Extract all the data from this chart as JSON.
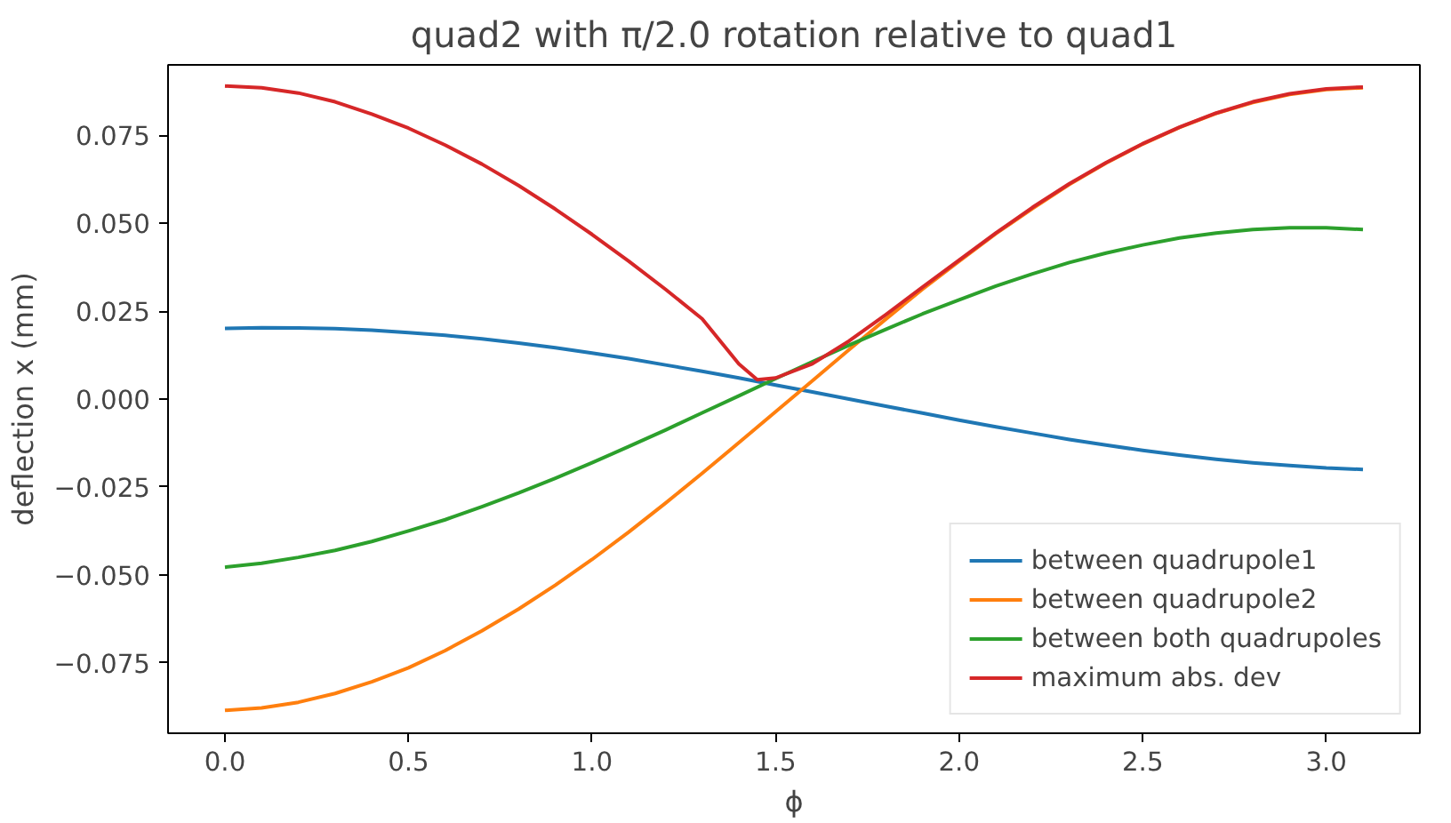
{
  "chart_data": {
    "type": "line",
    "title": "quad2 with π/2.0 rotation relative to quad1",
    "xlabel": "ϕ",
    "ylabel": "deflection x (mm)",
    "x": [
      0,
      0.1,
      0.2,
      0.3,
      0.4,
      0.5,
      0.6,
      0.7,
      0.8,
      0.9,
      1.0,
      1.1,
      1.2,
      1.3,
      1.4,
      1.5,
      1.6,
      1.7,
      1.8,
      1.9,
      2.0,
      2.1,
      2.2,
      2.3,
      2.4,
      2.5,
      2.6,
      2.7,
      2.8,
      2.9,
      3.0,
      3.1
    ],
    "series": [
      {
        "name": "between quadrupole1",
        "color": "#1f77b4",
        "values": [
          0.0201,
          0.0203,
          0.0202,
          0.02,
          0.0196,
          0.0189,
          0.0181,
          0.0171,
          0.0159,
          0.0146,
          0.0131,
          0.0115,
          0.0097,
          0.0079,
          0.006,
          0.004,
          0.002,
          0.0,
          -0.002,
          -0.004,
          -0.006,
          -0.0079,
          -0.0097,
          -0.0115,
          -0.0131,
          -0.0146,
          -0.0159,
          -0.0171,
          -0.0181,
          -0.0189,
          -0.0196,
          -0.02
        ]
      },
      {
        "name": "between quadrupole2",
        "color": "#ff7f0e",
        "values": [
          -0.0885,
          -0.0878,
          -0.0862,
          -0.0837,
          -0.0804,
          -0.0764,
          -0.0715,
          -0.0659,
          -0.0597,
          -0.0529,
          -0.0456,
          -0.0378,
          -0.0296,
          -0.0211,
          -0.0124,
          -0.0036,
          0.0052,
          0.014,
          0.0227,
          0.0312,
          0.0392,
          0.047,
          0.0542,
          0.061,
          0.0671,
          0.0725,
          0.0772,
          0.0812,
          0.0843,
          0.0866,
          0.088,
          0.0885
        ]
      },
      {
        "name": "between both quadrupoles",
        "color": "#2ca02c",
        "values": [
          -0.0478,
          -0.0467,
          -0.045,
          -0.043,
          -0.0405,
          -0.0375,
          -0.0343,
          -0.0306,
          -0.0267,
          -0.0225,
          -0.0181,
          -0.0135,
          -0.0088,
          -0.0039,
          0.0009,
          0.0058,
          0.0106,
          0.0153,
          0.0198,
          0.0242,
          0.0282,
          0.0321,
          0.0356,
          0.0388,
          0.0415,
          0.0438,
          0.0458,
          0.0472,
          0.0482,
          0.0487,
          0.0487,
          0.0482
        ]
      },
      {
        "name": "maximum abs. dev",
        "color": "#d62728",
        "x": [
          0,
          0.1,
          0.2,
          0.3,
          0.4,
          0.5,
          0.6,
          0.7,
          0.8,
          0.9,
          1.0,
          1.1,
          1.2,
          1.3,
          1.4,
          1.45,
          1.5,
          1.6,
          1.7,
          1.8,
          1.9,
          2.0,
          2.1,
          2.2,
          2.3,
          2.4,
          2.5,
          2.6,
          2.7,
          2.8,
          2.9,
          3.0,
          3.1
        ],
        "values": [
          0.089,
          0.0885,
          0.087,
          0.0845,
          0.081,
          0.077,
          0.0722,
          0.0668,
          0.0607,
          0.054,
          0.0468,
          0.0392,
          0.0312,
          0.0228,
          0.01,
          0.0055,
          0.006,
          0.01,
          0.0165,
          0.024,
          0.0318,
          0.0395,
          0.0472,
          0.0545,
          0.0612,
          0.0672,
          0.0726,
          0.0773,
          0.0813,
          0.0845,
          0.0868,
          0.0882,
          0.0887
        ]
      }
    ],
    "xlim": [
      -0.155,
      3.255
    ],
    "ylim": [
      -0.095,
      0.095
    ],
    "xticks": [
      {
        "value": 0,
        "label": "0.0"
      },
      {
        "value": 0.5,
        "label": "0.5"
      },
      {
        "value": 1.0,
        "label": "1.0"
      },
      {
        "value": 1.5,
        "label": "1.5"
      },
      {
        "value": 2.0,
        "label": "2.0"
      },
      {
        "value": 2.5,
        "label": "2.5"
      },
      {
        "value": 3.0,
        "label": "3.0"
      }
    ],
    "yticks": [
      {
        "value": -0.075,
        "label": "−0.075"
      },
      {
        "value": -0.05,
        "label": "−0.050"
      },
      {
        "value": -0.025,
        "label": "−0.025"
      },
      {
        "value": 0,
        "label": "0.000"
      },
      {
        "value": 0.025,
        "label": "0.025"
      },
      {
        "value": 0.05,
        "label": "0.050"
      },
      {
        "value": 0.075,
        "label": "0.075"
      }
    ],
    "legend": "bottom right",
    "grid": false,
    "line_style": "solid"
  }
}
